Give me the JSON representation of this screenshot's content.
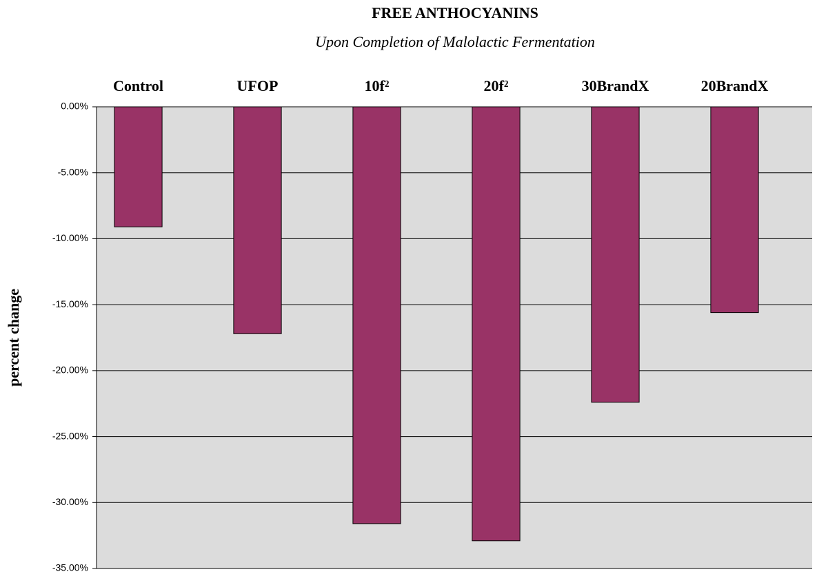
{
  "chart_data": {
    "type": "bar",
    "title": "FREE ANTHOCYANINS",
    "subtitle": "Upon Completion of Malolactic Fermentation",
    "ylabel": "percent change",
    "categories": [
      "Control",
      "UFOP",
      "10f²",
      "20f²",
      "30BrandX",
      "20BrandX"
    ],
    "values": [
      -9.1,
      -17.2,
      -31.6,
      -32.9,
      -22.4,
      -15.6
    ],
    "color": "#993366",
    "ylim": [
      -35,
      0
    ],
    "yticks": [
      {
        "value": 0,
        "label": "0.00%"
      },
      {
        "value": -5,
        "label": "-5.00%"
      },
      {
        "value": -10,
        "label": "-10.00%"
      },
      {
        "value": -15,
        "label": "-15.00%"
      },
      {
        "value": -20,
        "label": "-20.00%"
      },
      {
        "value": -25,
        "label": "-25.00%"
      },
      {
        "value": -30,
        "label": "-30.00%"
      },
      {
        "value": -35,
        "label": "-35.00%"
      }
    ],
    "grid": true
  }
}
